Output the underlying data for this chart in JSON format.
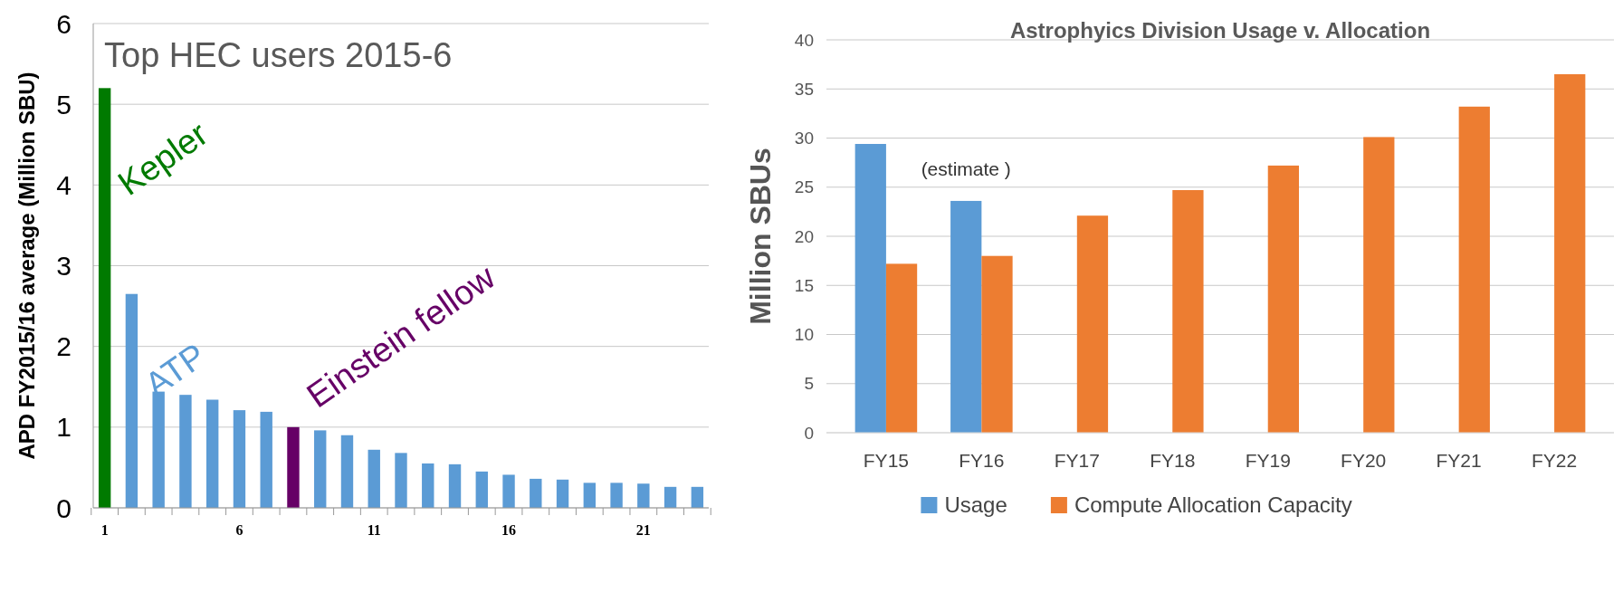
{
  "chart_data": [
    {
      "type": "bar",
      "title": "Top HEC users 2015-6",
      "ylabel": "APD FY2015/16 average (Million SBU)",
      "categories": [
        "1",
        null,
        null,
        null,
        null,
        "6",
        null,
        null,
        null,
        null,
        "11",
        null,
        null,
        null,
        null,
        "16",
        null,
        null,
        null,
        null,
        "21",
        null,
        null
      ],
      "values": [
        5.2,
        2.65,
        1.44,
        1.4,
        1.34,
        1.21,
        1.19,
        1.0,
        0.96,
        0.9,
        0.72,
        0.68,
        0.55,
        0.54,
        0.45,
        0.41,
        0.36,
        0.35,
        0.31,
        0.31,
        0.3,
        0.26,
        0.26
      ],
      "colors": [
        "#007a00",
        "#5b9bd5",
        "#5b9bd5",
        "#5b9bd5",
        "#5b9bd5",
        "#5b9bd5",
        "#5b9bd5",
        "#660066",
        "#5b9bd5",
        "#5b9bd5",
        "#5b9bd5",
        "#5b9bd5",
        "#5b9bd5",
        "#5b9bd5",
        "#5b9bd5",
        "#5b9bd5",
        "#5b9bd5",
        "#5b9bd5",
        "#5b9bd5",
        "#5b9bd5",
        "#5b9bd5",
        "#5b9bd5",
        "#5b9bd5"
      ],
      "annotations": [
        "Kepler",
        "ATP",
        "Einstein fellow"
      ],
      "ylim": [
        0,
        6
      ],
      "yticks": [
        0,
        1,
        2,
        3,
        4,
        5,
        6
      ],
      "grid": "y"
    },
    {
      "type": "bar",
      "title": "Astrophyics Division Usage v. Allocation",
      "ylabel": "Million SBUs",
      "categories": [
        "FY15",
        "FY16",
        "FY17",
        "FY18",
        "FY19",
        "FY20",
        "FY21",
        "FY22"
      ],
      "series": [
        {
          "name": "Usage",
          "color": "#5b9bd5",
          "values": [
            29.4,
            23.6,
            null,
            null,
            null,
            null,
            null,
            null
          ]
        },
        {
          "name": "Compute Allocation Capacity",
          "color": "#ed7d31",
          "values": [
            17.2,
            18.0,
            22.1,
            24.7,
            27.2,
            30.1,
            33.2,
            36.5
          ]
        }
      ],
      "annotations": [
        "(estimate )"
      ],
      "ylim": [
        0,
        40
      ],
      "yticks": [
        0,
        5,
        10,
        15,
        20,
        25,
        30,
        35,
        40
      ],
      "grid": "y",
      "legend": "bottom"
    }
  ]
}
